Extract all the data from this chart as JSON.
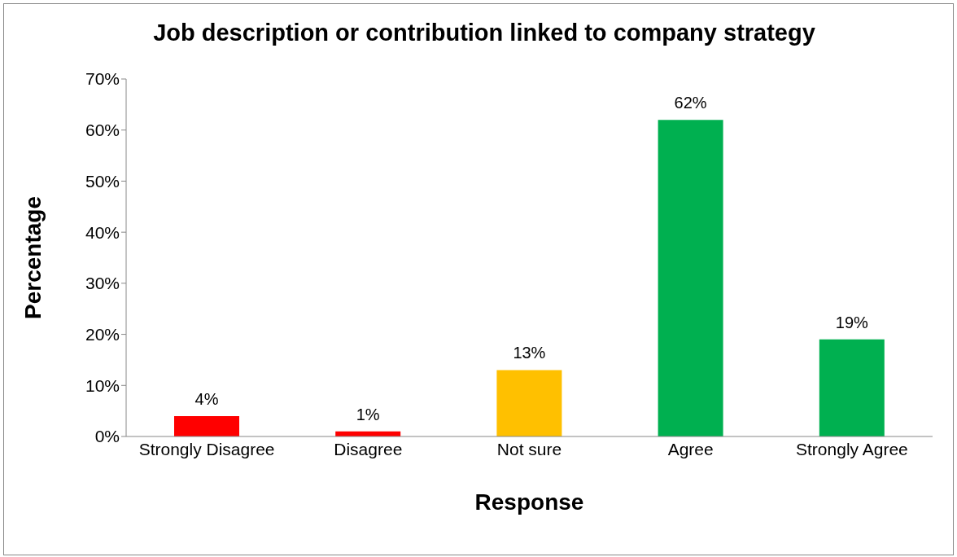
{
  "chart_data": {
    "type": "bar",
    "title": "Job description or contribution linked to company strategy",
    "xlabel": "Response",
    "ylabel": "Percentage",
    "categories": [
      "Strongly Disagree",
      "Disagree",
      "Not sure",
      "Agree",
      "Strongly Agree"
    ],
    "values": [
      4,
      1,
      13,
      62,
      19
    ],
    "colors": [
      "#ff0000",
      "#ff0000",
      "#ffc000",
      "#00b050",
      "#00b050"
    ],
    "value_labels": [
      "4%",
      "1%",
      "13%",
      "62%",
      "19%"
    ],
    "ylim": [
      0,
      70
    ],
    "yticks": [
      {
        "value": 0,
        "label": "0%"
      },
      {
        "value": 10,
        "label": "10%"
      },
      {
        "value": 20,
        "label": "20%"
      },
      {
        "value": 30,
        "label": "30%"
      },
      {
        "value": 40,
        "label": "40%"
      },
      {
        "value": 50,
        "label": "50%"
      },
      {
        "value": 60,
        "label": "60%"
      },
      {
        "value": 70,
        "label": "70%"
      }
    ],
    "grid": false,
    "legend": false
  }
}
